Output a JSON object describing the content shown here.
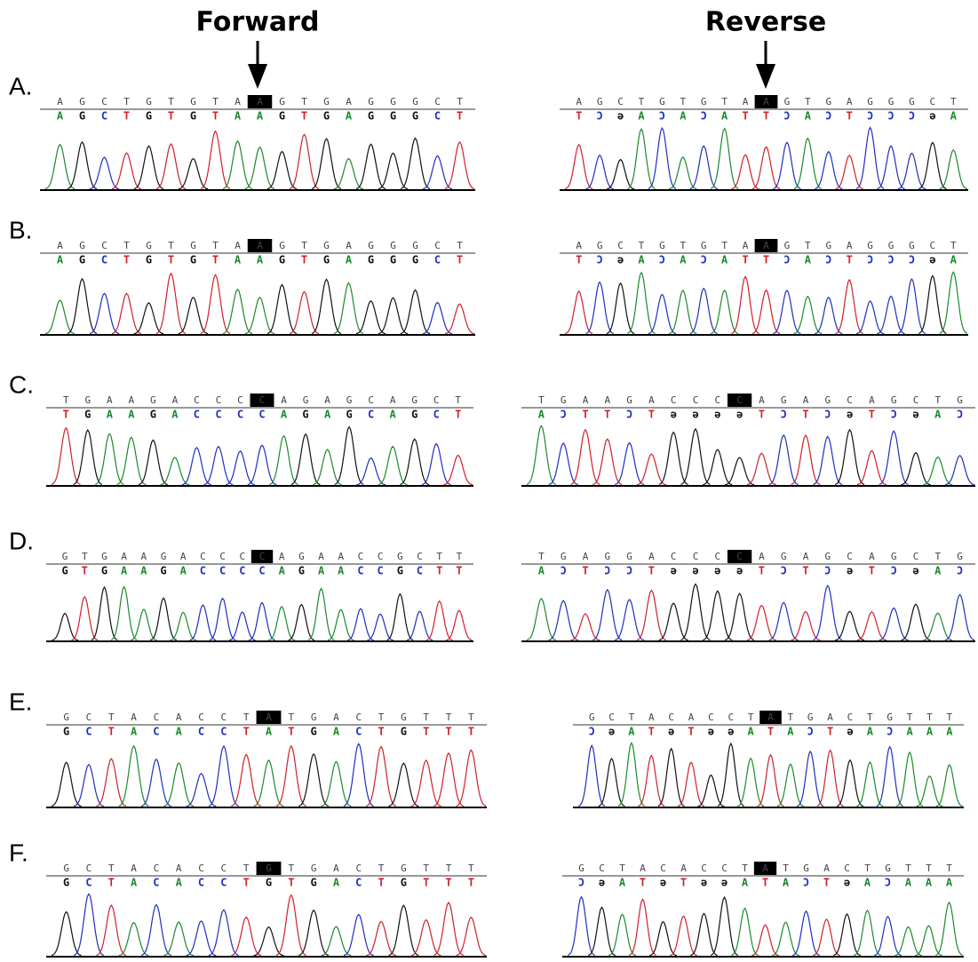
{
  "headers": {
    "forward": "Forward",
    "reverse": "Reverse"
  },
  "panels": [
    {
      "label": "A.",
      "forward": {
        "called": [
          "A",
          "G",
          "C",
          "T",
          "G",
          "T",
          "G",
          "T",
          "A",
          "A",
          "G",
          "T",
          "G",
          "A",
          "G",
          "G",
          "G",
          "C",
          "T"
        ],
        "bases": [
          "A",
          "G",
          "C",
          "T",
          "G",
          "T",
          "G",
          "T",
          "A",
          "A",
          "G",
          "T",
          "G",
          "A",
          "G",
          "G",
          "G",
          "C",
          "T"
        ]
      },
      "reverse": {
        "called": [
          "A",
          "G",
          "C",
          "T",
          "G",
          "T",
          "G",
          "T",
          "A",
          "A",
          "G",
          "T",
          "G",
          "A",
          "G",
          "G",
          "G",
          "C",
          "T"
        ],
        "bases": [
          "T",
          "Ɔ",
          "ə",
          "A",
          "Ɔ",
          "A",
          "Ɔ",
          "A",
          "T",
          "T",
          "Ɔ",
          "A",
          "Ɔ",
          "T",
          "Ɔ",
          "Ɔ",
          "Ɔ",
          "ə",
          "A"
        ]
      }
    },
    {
      "label": "B.",
      "forward": {
        "called": [
          "A",
          "G",
          "C",
          "T",
          "G",
          "T",
          "G",
          "T",
          "A",
          "A",
          "G",
          "T",
          "G",
          "A",
          "G",
          "G",
          "G",
          "C",
          "T"
        ],
        "bases": [
          "A",
          "G",
          "C",
          "T",
          "G",
          "T",
          "G",
          "T",
          "A",
          "A",
          "G",
          "T",
          "G",
          "A",
          "G",
          "G",
          "G",
          "C",
          "T"
        ]
      },
      "reverse": {
        "called": [
          "A",
          "G",
          "C",
          "T",
          "G",
          "T",
          "G",
          "T",
          "A",
          "A",
          "G",
          "T",
          "G",
          "A",
          "G",
          "G",
          "G",
          "C",
          "T"
        ],
        "bases": [
          "T",
          "Ɔ",
          "ə",
          "A",
          "Ɔ",
          "A",
          "Ɔ",
          "A",
          "T",
          "T",
          "Ɔ",
          "A",
          "Ɔ",
          "T",
          "Ɔ",
          "Ɔ",
          "Ɔ",
          "ə",
          "A"
        ]
      }
    },
    {
      "label": "C.",
      "forward": {
        "called": [
          "T",
          "G",
          "A",
          "A",
          "G",
          "A",
          "C",
          "C",
          "C",
          "C",
          "A",
          "G",
          "A",
          "G",
          "C",
          "A",
          "G",
          "C",
          "T"
        ],
        "bases": [
          "T",
          "G",
          "A",
          "A",
          "G",
          "A",
          "C",
          "C",
          "C",
          "C",
          "A",
          "G",
          "A",
          "G",
          "C",
          "A",
          "G",
          "C",
          "T"
        ]
      },
      "reverse": {
        "called": [
          "T",
          "G",
          "A",
          "A",
          "G",
          "A",
          "C",
          "C",
          "C",
          "C",
          "A",
          "G",
          "A",
          "G",
          "C",
          "A",
          "G",
          "C",
          "T",
          "G"
        ],
        "bases": [
          "A",
          "Ɔ",
          "T",
          "T",
          "Ɔ",
          "T",
          "ə",
          "ə",
          "ə",
          "ə",
          "T",
          "Ɔ",
          "T",
          "Ɔ",
          "ə",
          "T",
          "Ɔ",
          "ə",
          "A",
          "Ɔ"
        ]
      }
    },
    {
      "label": "D.",
      "forward": {
        "called": [
          "G",
          "T",
          "G",
          "A",
          "A",
          "G",
          "A",
          "C",
          "C",
          "C",
          "C",
          "A",
          "G",
          "A",
          "A",
          "C",
          "C",
          "G",
          "C",
          "T",
          "T"
        ],
        "bases": [
          "G",
          "T",
          "G",
          "A",
          "A",
          "G",
          "A",
          "C",
          "C",
          "C",
          "C",
          "A",
          "G",
          "A",
          "A",
          "C",
          "C",
          "G",
          "C",
          "T",
          "T"
        ]
      },
      "reverse": {
        "called": [
          "T",
          "G",
          "A",
          "G",
          "G",
          "A",
          "C",
          "C",
          "C",
          "C",
          "A",
          "G",
          "A",
          "G",
          "C",
          "A",
          "G",
          "C",
          "T",
          "G"
        ],
        "bases": [
          "A",
          "Ɔ",
          "T",
          "Ɔ",
          "Ɔ",
          "T",
          "ə",
          "ə",
          "ə",
          "ə",
          "T",
          "Ɔ",
          "T",
          "Ɔ",
          "ə",
          "T",
          "Ɔ",
          "ə",
          "A",
          "Ɔ"
        ]
      }
    },
    {
      "label": "E.",
      "forward": {
        "called": [
          "G",
          "C",
          "T",
          "A",
          "C",
          "A",
          "C",
          "C",
          "T",
          "A",
          "T",
          "G",
          "A",
          "C",
          "T",
          "G",
          "T",
          "T",
          "T"
        ],
        "bases": [
          "G",
          "C",
          "T",
          "A",
          "C",
          "A",
          "C",
          "C",
          "T",
          "A",
          "T",
          "G",
          "A",
          "C",
          "T",
          "G",
          "T",
          "T",
          "T"
        ]
      },
      "reverse": {
        "called": [
          "G",
          "C",
          "T",
          "A",
          "C",
          "A",
          "C",
          "C",
          "T",
          "A",
          "T",
          "G",
          "A",
          "C",
          "T",
          "G",
          "T",
          "T",
          "T"
        ],
        "bases": [
          "Ɔ",
          "ə",
          "A",
          "T",
          "ə",
          "T",
          "ə",
          "ə",
          "A",
          "T",
          "A",
          "Ɔ",
          "T",
          "ə",
          "A",
          "Ɔ",
          "A",
          "A",
          "A"
        ]
      }
    },
    {
      "label": "F.",
      "forward": {
        "called": [
          "G",
          "C",
          "T",
          "A",
          "C",
          "A",
          "C",
          "C",
          "T",
          "G",
          "T",
          "G",
          "A",
          "C",
          "T",
          "G",
          "T",
          "T",
          "T"
        ],
        "bases": [
          "G",
          "C",
          "T",
          "A",
          "C",
          "A",
          "C",
          "C",
          "T",
          "G",
          "T",
          "G",
          "A",
          "C",
          "T",
          "G",
          "T",
          "T",
          "T"
        ]
      },
      "reverse": {
        "called": [
          "G",
          "C",
          "T",
          "A",
          "C",
          "A",
          "C",
          "C",
          "T",
          "A",
          "T",
          "G",
          "A",
          "C",
          "T",
          "G",
          "T",
          "T",
          "T"
        ],
        "bases": [
          "Ɔ",
          "ə",
          "A",
          "T",
          "ə",
          "T",
          "ə",
          "ə",
          "A",
          "T",
          "A",
          "Ɔ",
          "T",
          "ə",
          "A",
          "Ɔ",
          "A",
          "A",
          "A"
        ]
      }
    }
  ]
}
